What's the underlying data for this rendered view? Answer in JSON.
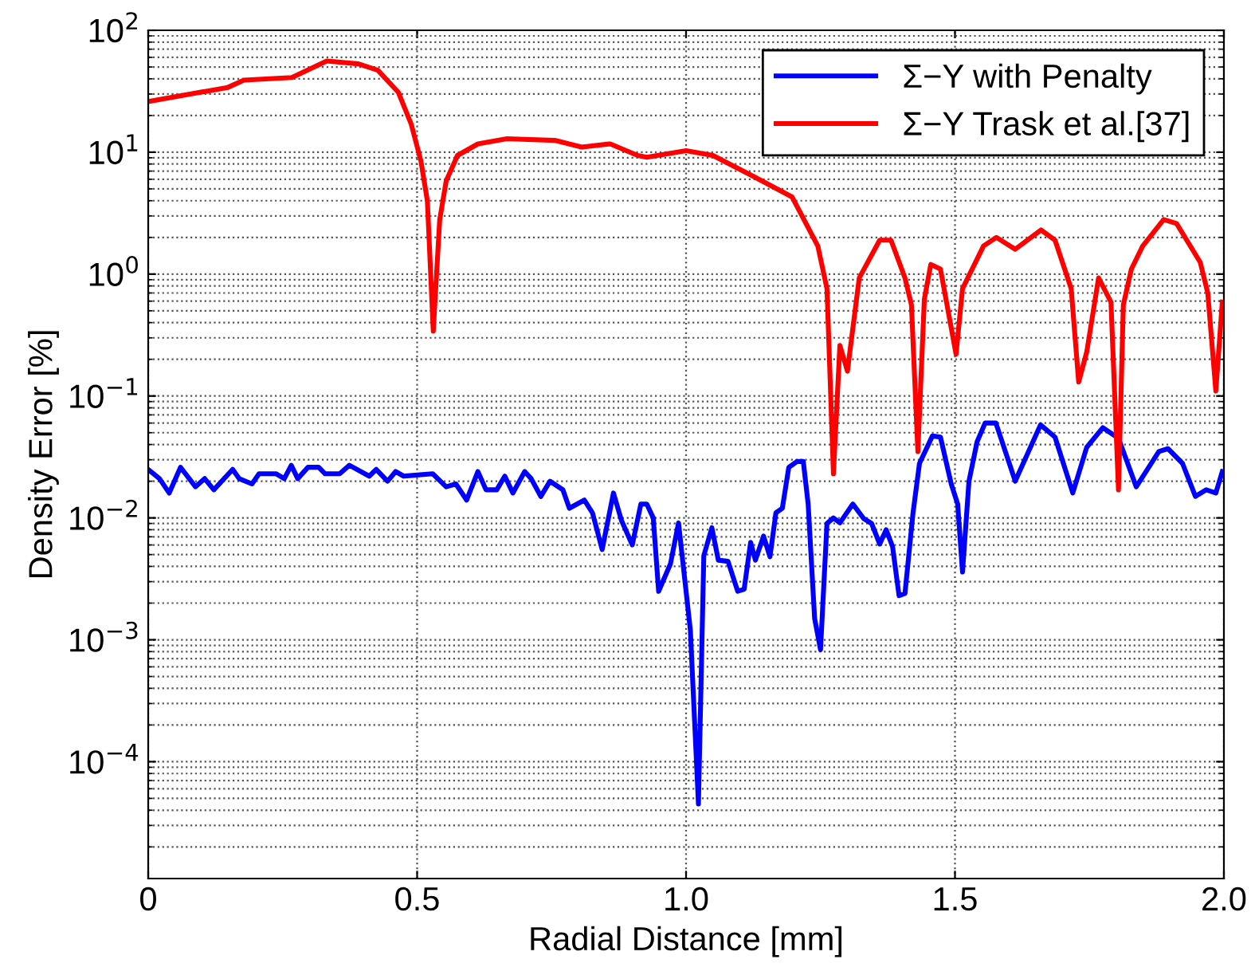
{
  "chart_data": {
    "type": "line",
    "xlabel": "Radial Distance [mm]",
    "ylabel": "Density Error [%]",
    "log": "y",
    "grid": true,
    "legend": "top right",
    "line_style": "solid",
    "marker": "none",
    "xlim": [
      0,
      2.0
    ],
    "xticks": [
      0,
      0.5,
      {
        "value": 1.0,
        "label": "1.0"
      },
      1.5,
      {
        "value": 2.0,
        "label": "2.0"
      }
    ],
    "ylim": [
      1.1e-05,
      100
    ],
    "yticks": [
      {
        "value": 0.0001,
        "label": "10$^{−4}$"
      },
      {
        "value": 0.001,
        "label": "10$^{−3}$"
      },
      {
        "value": 0.01,
        "label": "10$^{−2}$"
      },
      {
        "value": 0.1,
        "label": "10$^{−1}$"
      },
      {
        "value": 1,
        "label": "10$^{0}$"
      },
      {
        "value": 10,
        "label": "10$^{1}$"
      },
      {
        "value": 100,
        "label": "10$^{2}$"
      }
    ],
    "series": [
      {
        "name": "Σ−Y with Penalty",
        "color": "#0000ff",
        "x": [
          0,
          0.021,
          0.039,
          0.06,
          0.088,
          0.105,
          0.122,
          0.157,
          0.169,
          0.193,
          0.206,
          0.238,
          0.253,
          0.266,
          0.278,
          0.297,
          0.317,
          0.329,
          0.356,
          0.374,
          0.411,
          0.424,
          0.445,
          0.46,
          0.475,
          0.529,
          0.554,
          0.572,
          0.592,
          0.613,
          0.628,
          0.648,
          0.663,
          0.678,
          0.7,
          0.712,
          0.73,
          0.747,
          0.771,
          0.783,
          0.811,
          0.826,
          0.844,
          0.865,
          0.88,
          0.9,
          0.916,
          0.927,
          0.939,
          0.949,
          0.971,
          0.986,
          1.008,
          1.023,
          1.033,
          1.048,
          1.06,
          1.078,
          1.096,
          1.108,
          1.12,
          1.129,
          1.144,
          1.156,
          1.167,
          1.179,
          1.191,
          1.206,
          1.218,
          1.227,
          1.239,
          1.25,
          1.262,
          1.274,
          1.286,
          1.31,
          1.33,
          1.345,
          1.36,
          1.372,
          1.384,
          1.396,
          1.407,
          1.422,
          1.434,
          1.458,
          1.473,
          1.493,
          1.505,
          1.514,
          1.526,
          1.541,
          1.556,
          1.576,
          1.612,
          1.659,
          1.686,
          1.719,
          1.745,
          1.775,
          1.804,
          1.837,
          1.879,
          1.896,
          1.923,
          1.947,
          1.967,
          1.985,
          1.997
        ],
        "values": [
          0.025,
          0.021,
          0.016,
          0.026,
          0.018,
          0.021,
          0.017,
          0.025,
          0.021,
          0.019,
          0.023,
          0.023,
          0.021,
          0.027,
          0.021,
          0.026,
          0.026,
          0.023,
          0.023,
          0.027,
          0.022,
          0.025,
          0.02,
          0.024,
          0.022,
          0.023,
          0.018,
          0.019,
          0.014,
          0.024,
          0.017,
          0.017,
          0.022,
          0.016,
          0.024,
          0.021,
          0.015,
          0.02,
          0.017,
          0.012,
          0.014,
          0.011,
          0.0055,
          0.016,
          0.0095,
          0.006,
          0.013,
          0.013,
          0.01,
          0.0025,
          0.0042,
          0.0091,
          0.0012,
          4.5e-05,
          0.0049,
          0.0083,
          0.0045,
          0.0044,
          0.0025,
          0.0026,
          0.0063,
          0.0045,
          0.0071,
          0.0048,
          0.011,
          0.012,
          0.026,
          0.029,
          0.029,
          0.013,
          0.0015,
          0.00083,
          0.009,
          0.01,
          0.0091,
          0.013,
          0.0099,
          0.009,
          0.0061,
          0.008,
          0.0058,
          0.0023,
          0.0024,
          0.011,
          0.028,
          0.047,
          0.046,
          0.019,
          0.013,
          0.0036,
          0.02,
          0.042,
          0.06,
          0.06,
          0.02,
          0.058,
          0.046,
          0.016,
          0.038,
          0.055,
          0.045,
          0.018,
          0.035,
          0.037,
          0.028,
          0.015,
          0.017,
          0.016,
          0.024
        ]
      },
      {
        "name": "Σ−Y Trask et al.[37]",
        "color": "#ff0000",
        "x": [
          0,
          0.148,
          0.178,
          0.267,
          0.332,
          0.391,
          0.427,
          0.465,
          0.489,
          0.507,
          0.519,
          0.53,
          0.542,
          0.554,
          0.575,
          0.613,
          0.667,
          0.756,
          0.806,
          0.859,
          0.91,
          0.927,
          1.0,
          1.05,
          1.126,
          1.197,
          1.245,
          1.262,
          1.274,
          1.286,
          1.3,
          1.322,
          1.36,
          1.381,
          1.407,
          1.419,
          1.431,
          1.443,
          1.455,
          1.473,
          1.502,
          1.514,
          1.553,
          1.577,
          1.612,
          1.66,
          1.686,
          1.716,
          1.73,
          1.745,
          1.767,
          1.79,
          1.804,
          1.813,
          1.828,
          1.849,
          1.888,
          1.912,
          1.956,
          1.97,
          1.985,
          1.997
        ],
        "values": [
          26,
          34,
          39,
          41,
          56,
          53,
          47,
          31,
          17,
          8.5,
          4,
          0.34,
          2.8,
          5.8,
          9.4,
          11.7,
          12.9,
          12.5,
          11,
          11.7,
          9.4,
          9.1,
          10.3,
          9.4,
          6.3,
          4.3,
          1.7,
          0.76,
          0.023,
          0.26,
          0.16,
          0.93,
          1.9,
          1.9,
          0.93,
          0.56,
          0.035,
          0.62,
          1.2,
          1.1,
          0.22,
          0.76,
          1.7,
          2.0,
          1.6,
          2.3,
          1.9,
          0.76,
          0.13,
          0.23,
          0.93,
          0.59,
          0.017,
          0.56,
          1.1,
          1.7,
          2.8,
          2.6,
          1.25,
          0.7,
          0.11,
          0.59
        ]
      }
    ]
  }
}
